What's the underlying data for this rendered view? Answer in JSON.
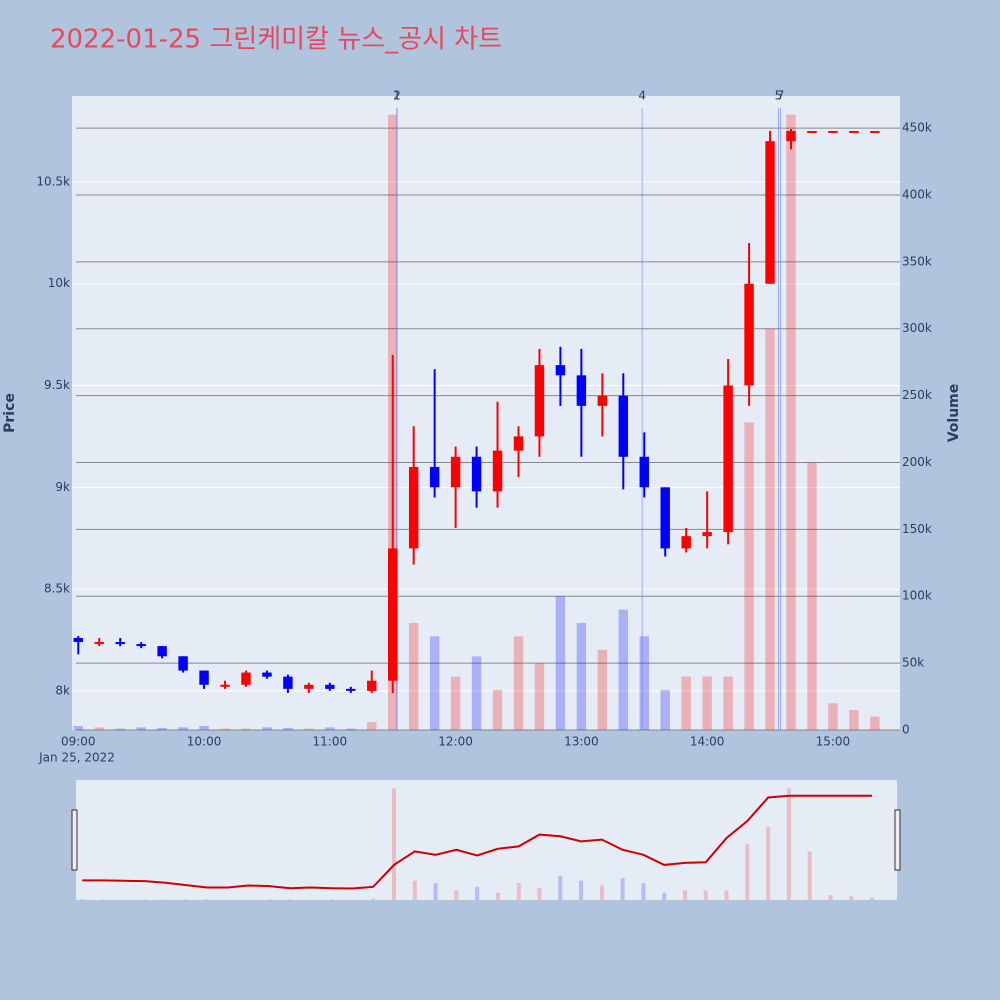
{
  "chart_data": {
    "type": "candlestick",
    "title": "2022-01-25 그린케미칼 뉴스_공시 차트",
    "y_label": "Price",
    "y2_label": "Volume",
    "x": [
      "09:00",
      "09:10",
      "09:20",
      "09:30",
      "09:40",
      "09:50",
      "10:00",
      "10:10",
      "10:20",
      "10:30",
      "10:40",
      "10:50",
      "11:00",
      "11:10",
      "11:20",
      "11:30",
      "11:40",
      "11:50",
      "12:00",
      "12:10",
      "12:20",
      "12:30",
      "12:40",
      "12:50",
      "13:00",
      "13:10",
      "13:20",
      "13:30",
      "13:40",
      "13:50",
      "14:00",
      "14:10",
      "14:20",
      "14:30",
      "14:40",
      "14:50",
      "15:00",
      "15:10",
      "15:20"
    ],
    "open": [
      8260,
      8240,
      8240,
      8230,
      8220,
      8170,
      8100,
      8030,
      8030,
      8090,
      8070,
      8010,
      8030,
      8010,
      8000,
      8050,
      8700,
      9100,
      9000,
      9150,
      8980,
      9180,
      9250,
      9600,
      9550,
      9400,
      9450,
      9150,
      9000,
      8700,
      8760,
      8780,
      9500,
      10000,
      10700,
      10750,
      10750,
      10750,
      10750
    ],
    "high": [
      8270,
      8260,
      8260,
      8240,
      8220,
      8170,
      8100,
      8050,
      8100,
      8100,
      8080,
      8040,
      8040,
      8020,
      8100,
      9650,
      9300,
      9580,
      9200,
      9200,
      9420,
      9300,
      9680,
      9690,
      9680,
      9560,
      9560,
      9270,
      9000,
      8800,
      8980,
      9630,
      10200,
      10750,
      10760,
      10750,
      10750,
      10750,
      10750
    ],
    "low": [
      8180,
      8220,
      8220,
      8210,
      8160,
      8090,
      8010,
      8010,
      8020,
      8060,
      7990,
      7990,
      8000,
      7990,
      7990,
      7990,
      8620,
      8950,
      8800,
      8900,
      8900,
      9050,
      9150,
      9400,
      9150,
      9250,
      8990,
      8950,
      8660,
      8680,
      8700,
      8720,
      9400,
      10000,
      10660,
      10750,
      10750,
      10750,
      10750
    ],
    "close": [
      8240,
      8240,
      8230,
      8220,
      8170,
      8100,
      8030,
      8030,
      8090,
      8070,
      8010,
      8030,
      8010,
      8000,
      8050,
      8700,
      9100,
      9000,
      9150,
      8980,
      9180,
      9250,
      9600,
      9550,
      9400,
      9450,
      9150,
      9000,
      8700,
      8760,
      8780,
      9500,
      10000,
      10700,
      10750,
      10750,
      10750,
      10750,
      10750
    ],
    "volume": [
      3000,
      2000,
      1000,
      2000,
      1500,
      2000,
      3000,
      1000,
      1000,
      2000,
      1500,
      1000,
      2000,
      1000,
      6000,
      460000,
      80000,
      70000,
      40000,
      55000,
      30000,
      70000,
      50000,
      100000,
      80000,
      60000,
      90000,
      70000,
      30000,
      40000,
      40000,
      40000,
      230000,
      300000,
      460000,
      200000,
      20000,
      15000,
      10000
    ],
    "increasing_color": "#ff0000",
    "decreasing_color": "#0000ff",
    "xlim": [
      "08:57",
      "15:32"
    ],
    "xticks": [
      "09:00",
      "10:00",
      "11:00",
      "12:00",
      "13:00",
      "14:00",
      "15:00"
    ],
    "x_date_label": "Jan 25, 2022",
    "ylim": [
      7808,
      10922
    ],
    "yticks": [
      {
        "value": 8000,
        "label": "8k"
      },
      {
        "value": 8500,
        "label": "8.5k"
      },
      {
        "value": 9000,
        "label": "9k"
      },
      {
        "value": 9500,
        "label": "9.5k"
      },
      {
        "value": 10000,
        "label": "10k"
      },
      {
        "value": 10500,
        "label": "10.5k"
      }
    ],
    "y2lim": [
      0,
      474000
    ],
    "y2ticks": [
      0,
      {
        "value": 50000,
        "label": "50k"
      },
      {
        "value": 100000,
        "label": "100k"
      },
      {
        "value": 150000,
        "label": "150k"
      },
      {
        "value": 200000,
        "label": "200k"
      },
      {
        "value": 250000,
        "label": "250k"
      },
      {
        "value": 300000,
        "label": "300k"
      },
      {
        "value": 350000,
        "label": "350k"
      },
      {
        "value": 400000,
        "label": "400k"
      },
      {
        "value": 450000,
        "label": "450k"
      }
    ],
    "news": [
      {
        "x": "11:32",
        "label": "1"
      },
      {
        "x": "11:32",
        "label": "2"
      },
      {
        "x": "13:29",
        "label": "4"
      },
      {
        "x": "14:34",
        "label": "5"
      },
      {
        "x": "14:35",
        "label": "7"
      }
    ],
    "grid": true
  }
}
